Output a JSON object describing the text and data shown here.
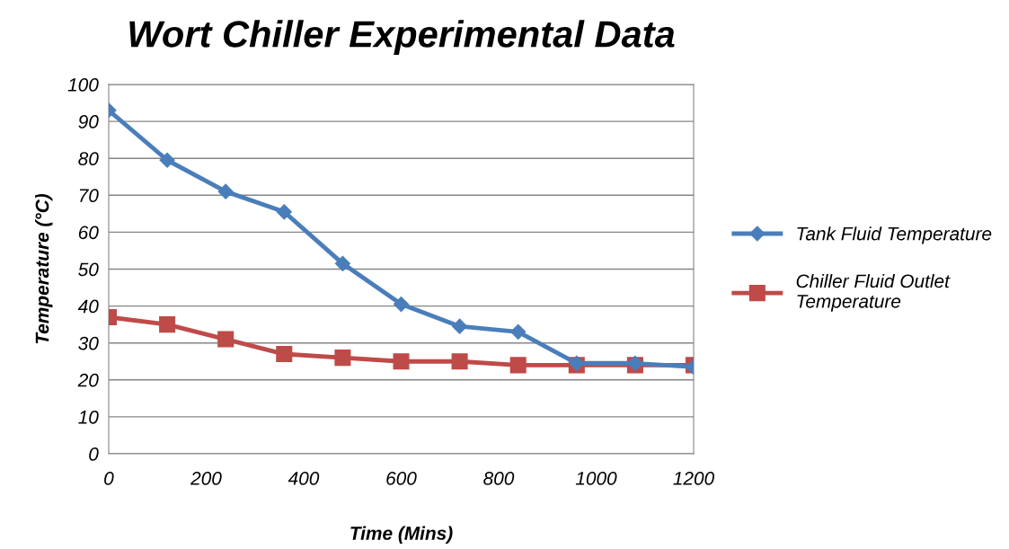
{
  "chart_data": {
    "type": "line",
    "title": "Wort Chiller Experimental Data",
    "xlabel": "Time (Mins)",
    "ylabel": "Temperature (°C)",
    "x": [
      0,
      120,
      240,
      360,
      480,
      600,
      720,
      840,
      960,
      1080,
      1200
    ],
    "series": [
      {
        "name": "Tank Fluid Temperature",
        "color": "#4a7ebb",
        "marker": "diamond",
        "values": [
          93,
          79.5,
          71,
          65.5,
          51.5,
          40.5,
          34.5,
          33,
          24.5,
          24.5,
          23.5
        ]
      },
      {
        "name": "Chiller Fluid Outlet Temperature",
        "color": "#be4b48",
        "marker": "square",
        "values": [
          37,
          35,
          31,
          27,
          26,
          25,
          25,
          24,
          24,
          24,
          24
        ]
      }
    ],
    "xlim": [
      0,
      1200
    ],
    "xticks": [
      0,
      200,
      400,
      600,
      800,
      1000,
      1200
    ],
    "ylim": [
      0,
      100
    ],
    "yticks": [
      0,
      10,
      20,
      30,
      40,
      50,
      60,
      70,
      80,
      90,
      100
    ],
    "grid": "y",
    "legend": "right",
    "line_style": "solid"
  }
}
